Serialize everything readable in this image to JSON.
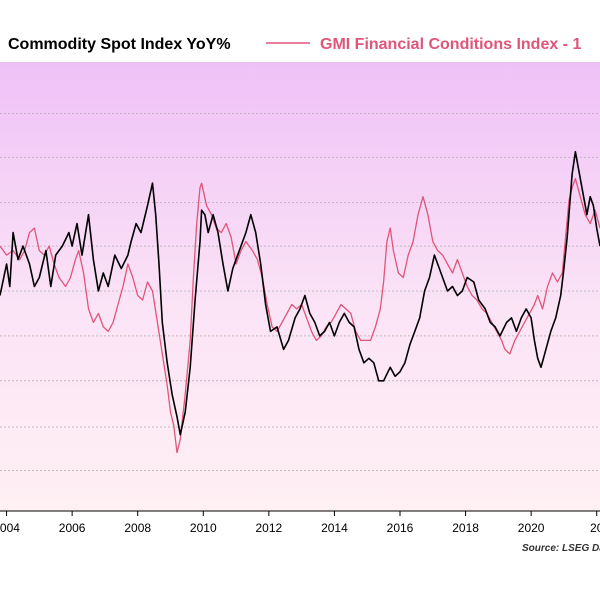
{
  "chart_data": {
    "type": "line",
    "legend_position": "top",
    "source": "Source: LSEG Da",
    "x_ticks": [
      "2004",
      "2006",
      "2008",
      "2010",
      "2012",
      "2014",
      "2016",
      "2018",
      "2020",
      "20"
    ],
    "xlim": [
      2003.8,
      2022.1
    ],
    "ylim": [
      0,
      100
    ],
    "grid": true,
    "gridlines_y": [
      9,
      18.7,
      29,
      39,
      49,
      59,
      68.7,
      78.7,
      88.5
    ],
    "series": [
      {
        "name": "Commodity Spot Index YoY%",
        "color": "#000000",
        "points": [
          [
            2003.8,
            48
          ],
          [
            2004.0,
            55
          ],
          [
            2004.1,
            50
          ],
          [
            2004.2,
            62
          ],
          [
            2004.35,
            56
          ],
          [
            2004.5,
            59
          ],
          [
            2004.7,
            55
          ],
          [
            2004.85,
            50
          ],
          [
            2005.0,
            52
          ],
          [
            2005.2,
            58
          ],
          [
            2005.35,
            50
          ],
          [
            2005.5,
            57
          ],
          [
            2005.7,
            59
          ],
          [
            2005.9,
            62
          ],
          [
            2006.0,
            59
          ],
          [
            2006.15,
            64
          ],
          [
            2006.3,
            57
          ],
          [
            2006.5,
            66
          ],
          [
            2006.65,
            56
          ],
          [
            2006.8,
            49
          ],
          [
            2006.95,
            53
          ],
          [
            2007.1,
            50
          ],
          [
            2007.3,
            57
          ],
          [
            2007.5,
            54
          ],
          [
            2007.7,
            57
          ],
          [
            2007.8,
            60
          ],
          [
            2007.95,
            64
          ],
          [
            2008.1,
            62
          ],
          [
            2008.3,
            68
          ],
          [
            2008.45,
            73
          ],
          [
            2008.55,
            66
          ],
          [
            2008.65,
            55
          ],
          [
            2008.75,
            42
          ],
          [
            2008.9,
            33
          ],
          [
            2009.05,
            26
          ],
          [
            2009.2,
            21
          ],
          [
            2009.3,
            17
          ],
          [
            2009.45,
            22
          ],
          [
            2009.6,
            32
          ],
          [
            2009.75,
            47
          ],
          [
            2009.9,
            60
          ],
          [
            2009.95,
            67
          ],
          [
            2010.05,
            66
          ],
          [
            2010.15,
            62
          ],
          [
            2010.3,
            66
          ],
          [
            2010.45,
            62
          ],
          [
            2010.6,
            55
          ],
          [
            2010.75,
            49
          ],
          [
            2010.9,
            54
          ],
          [
            2011.1,
            58
          ],
          [
            2011.3,
            62
          ],
          [
            2011.45,
            66
          ],
          [
            2011.6,
            62
          ],
          [
            2011.75,
            55
          ],
          [
            2011.9,
            46
          ],
          [
            2012.05,
            40
          ],
          [
            2012.25,
            41
          ],
          [
            2012.45,
            36
          ],
          [
            2012.6,
            38
          ],
          [
            2012.8,
            43
          ],
          [
            2012.95,
            45
          ],
          [
            2013.1,
            48
          ],
          [
            2013.25,
            44
          ],
          [
            2013.4,
            42
          ],
          [
            2013.55,
            39
          ],
          [
            2013.7,
            40
          ],
          [
            2013.85,
            42
          ],
          [
            2014.0,
            39
          ],
          [
            2014.15,
            42
          ],
          [
            2014.3,
            44
          ],
          [
            2014.45,
            42
          ],
          [
            2014.6,
            41
          ],
          [
            2014.75,
            36
          ],
          [
            2014.9,
            33
          ],
          [
            2015.05,
            34
          ],
          [
            2015.2,
            33
          ],
          [
            2015.35,
            29
          ],
          [
            2015.5,
            29
          ],
          [
            2015.7,
            32
          ],
          [
            2015.85,
            30
          ],
          [
            2016.0,
            31
          ],
          [
            2016.15,
            33
          ],
          [
            2016.3,
            37
          ],
          [
            2016.45,
            40
          ],
          [
            2016.6,
            43
          ],
          [
            2016.75,
            49
          ],
          [
            2016.9,
            52
          ],
          [
            2017.05,
            57
          ],
          [
            2017.15,
            55
          ],
          [
            2017.3,
            52
          ],
          [
            2017.45,
            49
          ],
          [
            2017.6,
            50
          ],
          [
            2017.75,
            48
          ],
          [
            2017.9,
            49
          ],
          [
            2018.05,
            52
          ],
          [
            2018.25,
            51
          ],
          [
            2018.4,
            47
          ],
          [
            2018.6,
            45
          ],
          [
            2018.75,
            42
          ],
          [
            2018.9,
            41
          ],
          [
            2019.05,
            39
          ],
          [
            2019.25,
            42
          ],
          [
            2019.4,
            43
          ],
          [
            2019.55,
            40
          ],
          [
            2019.7,
            43
          ],
          [
            2019.85,
            45
          ],
          [
            2020.0,
            43
          ],
          [
            2020.1,
            38
          ],
          [
            2020.2,
            34
          ],
          [
            2020.3,
            32
          ],
          [
            2020.45,
            36
          ],
          [
            2020.6,
            40
          ],
          [
            2020.75,
            43
          ],
          [
            2020.9,
            48
          ],
          [
            2021.0,
            54
          ],
          [
            2021.1,
            61
          ],
          [
            2021.25,
            75
          ],
          [
            2021.35,
            80
          ],
          [
            2021.45,
            76
          ],
          [
            2021.6,
            70
          ],
          [
            2021.7,
            66
          ],
          [
            2021.8,
            70
          ],
          [
            2021.9,
            68
          ],
          [
            2022.0,
            63
          ],
          [
            2022.1,
            59
          ]
        ]
      },
      {
        "name": "GMI Financial Conditions Index - 1",
        "color": "#E0557A",
        "points": [
          [
            2003.8,
            59
          ],
          [
            2004.0,
            57
          ],
          [
            2004.2,
            58
          ],
          [
            2004.4,
            56
          ],
          [
            2004.55,
            58
          ],
          [
            2004.7,
            62
          ],
          [
            2004.85,
            63
          ],
          [
            2005.0,
            58
          ],
          [
            2005.15,
            57
          ],
          [
            2005.3,
            59
          ],
          [
            2005.45,
            55
          ],
          [
            2005.6,
            52
          ],
          [
            2005.8,
            50
          ],
          [
            2005.95,
            52
          ],
          [
            2006.1,
            56
          ],
          [
            2006.2,
            58
          ],
          [
            2006.35,
            53
          ],
          [
            2006.5,
            45
          ],
          [
            2006.65,
            42
          ],
          [
            2006.8,
            44
          ],
          [
            2006.95,
            41
          ],
          [
            2007.1,
            40
          ],
          [
            2007.25,
            42
          ],
          [
            2007.4,
            46
          ],
          [
            2007.55,
            50
          ],
          [
            2007.7,
            55
          ],
          [
            2007.85,
            52
          ],
          [
            2008.0,
            48
          ],
          [
            2008.15,
            47
          ],
          [
            2008.3,
            51
          ],
          [
            2008.45,
            49
          ],
          [
            2008.6,
            42
          ],
          [
            2008.75,
            35
          ],
          [
            2008.9,
            28
          ],
          [
            2009.0,
            22
          ],
          [
            2009.1,
            19
          ],
          [
            2009.2,
            13
          ],
          [
            2009.3,
            16
          ],
          [
            2009.45,
            26
          ],
          [
            2009.6,
            38
          ],
          [
            2009.7,
            52
          ],
          [
            2009.8,
            64
          ],
          [
            2009.9,
            72
          ],
          [
            2009.95,
            73
          ],
          [
            2010.1,
            68
          ],
          [
            2010.25,
            66
          ],
          [
            2010.4,
            63
          ],
          [
            2010.55,
            62
          ],
          [
            2010.7,
            64
          ],
          [
            2010.85,
            61
          ],
          [
            2011.0,
            55
          ],
          [
            2011.15,
            58
          ],
          [
            2011.3,
            60
          ],
          [
            2011.5,
            58
          ],
          [
            2011.65,
            56
          ],
          [
            2011.8,
            52
          ],
          [
            2011.95,
            46
          ],
          [
            2012.1,
            41
          ],
          [
            2012.25,
            40
          ],
          [
            2012.4,
            42
          ],
          [
            2012.55,
            44
          ],
          [
            2012.7,
            46
          ],
          [
            2012.85,
            45
          ],
          [
            2013.0,
            46
          ],
          [
            2013.15,
            43
          ],
          [
            2013.3,
            40
          ],
          [
            2013.45,
            38
          ],
          [
            2013.6,
            39
          ],
          [
            2013.75,
            41
          ],
          [
            2013.9,
            42
          ],
          [
            2014.05,
            44
          ],
          [
            2014.2,
            46
          ],
          [
            2014.35,
            45
          ],
          [
            2014.5,
            44
          ],
          [
            2014.65,
            40
          ],
          [
            2014.8,
            38
          ],
          [
            2014.95,
            38
          ],
          [
            2015.1,
            38
          ],
          [
            2015.25,
            41
          ],
          [
            2015.4,
            45
          ],
          [
            2015.5,
            51
          ],
          [
            2015.6,
            60
          ],
          [
            2015.7,
            63
          ],
          [
            2015.8,
            58
          ],
          [
            2015.95,
            53
          ],
          [
            2016.1,
            52
          ],
          [
            2016.25,
            57
          ],
          [
            2016.4,
            60
          ],
          [
            2016.55,
            66
          ],
          [
            2016.7,
            70
          ],
          [
            2016.85,
            66
          ],
          [
            2017.0,
            60
          ],
          [
            2017.15,
            58
          ],
          [
            2017.3,
            57
          ],
          [
            2017.45,
            55
          ],
          [
            2017.6,
            53
          ],
          [
            2017.75,
            56
          ],
          [
            2017.9,
            53
          ],
          [
            2018.05,
            50
          ],
          [
            2018.2,
            48
          ],
          [
            2018.35,
            47
          ],
          [
            2018.5,
            45
          ],
          [
            2018.65,
            44
          ],
          [
            2018.8,
            42
          ],
          [
            2018.95,
            40
          ],
          [
            2019.1,
            38
          ],
          [
            2019.2,
            36
          ],
          [
            2019.35,
            35
          ],
          [
            2019.5,
            38
          ],
          [
            2019.65,
            40
          ],
          [
            2019.8,
            42
          ],
          [
            2019.95,
            44
          ],
          [
            2020.1,
            46
          ],
          [
            2020.2,
            48
          ],
          [
            2020.35,
            45
          ],
          [
            2020.5,
            50
          ],
          [
            2020.65,
            53
          ],
          [
            2020.8,
            51
          ],
          [
            2020.95,
            53
          ],
          [
            2021.05,
            61
          ],
          [
            2021.15,
            69
          ],
          [
            2021.25,
            72
          ],
          [
            2021.35,
            74
          ],
          [
            2021.5,
            70
          ],
          [
            2021.65,
            66
          ],
          [
            2021.8,
            64
          ],
          [
            2021.95,
            67
          ],
          [
            2022.1,
            63
          ]
        ]
      }
    ]
  }
}
